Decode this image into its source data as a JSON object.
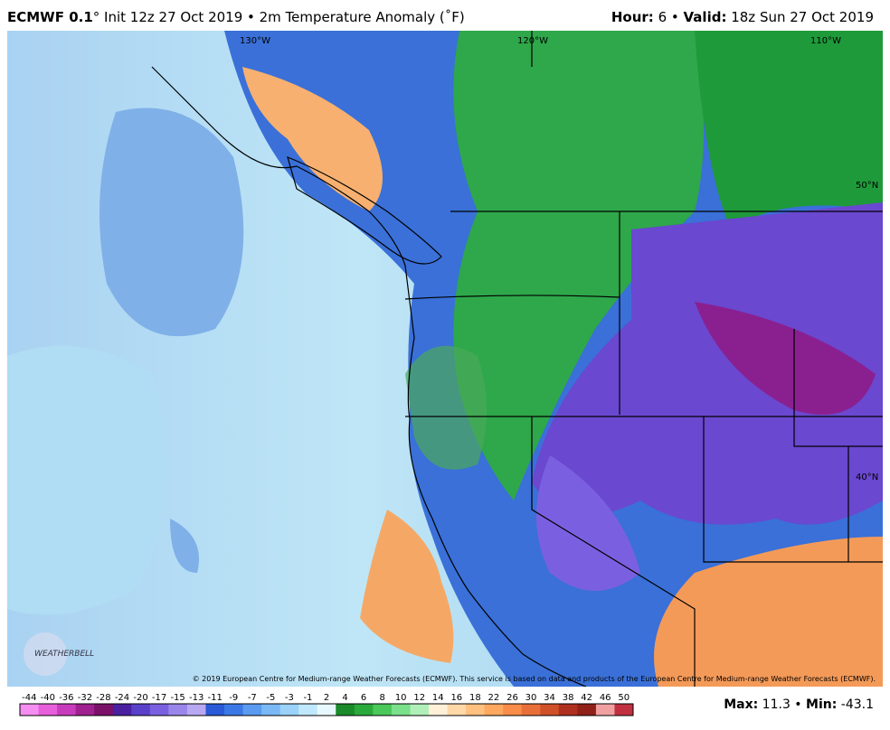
{
  "header": {
    "model": "ECMWF 0.1",
    "run": "° Init 12z 27 Oct 2019 • 2m Temperature Anomaly (˚F)",
    "hour_label": "Hour:",
    "hour": " 6 • ",
    "valid_label": "Valid:",
    "valid": " 18z Sun 27 Oct 2019"
  },
  "map": {
    "lon_labels": [
      "130°W",
      "120°W",
      "110°W"
    ],
    "lat_labels": [
      "50°N",
      "40°N"
    ],
    "logo": "WEATHERBELL",
    "copyright": "© 2019 European Centre for Medium-range Weather Forecasts (ECMWF). This service is based on data and products of the European Centre for Medium-range Weather Forecasts (ECMWF)."
  },
  "colorbar": {
    "labels": [
      -44,
      -40,
      -36,
      -32,
      -28,
      -24,
      -20,
      -17,
      -15,
      -13,
      -11,
      -9,
      -7,
      -5,
      -3,
      -1,
      2,
      4,
      6,
      8,
      10,
      12,
      14,
      16,
      18,
      22,
      26,
      30,
      34,
      38,
      42,
      46,
      50
    ],
    "colors": [
      "#f58ef0",
      "#e85fdc",
      "#c93bbd",
      "#a0208f",
      "#7a1068",
      "#4a20a0",
      "#5a40c8",
      "#7a60e0",
      "#9a86ea",
      "#b8a8f2",
      "#2a5ad8",
      "#3a78e6",
      "#5a9af0",
      "#7ab8f6",
      "#9ad2fa",
      "#c0e8fc",
      "#e8f8ff",
      "#1a8a2a",
      "#2aaa3a",
      "#4ac85a",
      "#7ae08a",
      "#b0f0b8",
      "#fff0d8",
      "#ffd8a8",
      "#ffc080",
      "#ffa860",
      "#f88c48",
      "#e87038",
      "#d05028",
      "#b03020",
      "#902018",
      "#f0a0a0",
      "#c03040"
    ]
  },
  "footer": {
    "max_label": "Max:",
    "max": " 11.3 • ",
    "min_label": "Min:",
    "min": " -43.1"
  }
}
